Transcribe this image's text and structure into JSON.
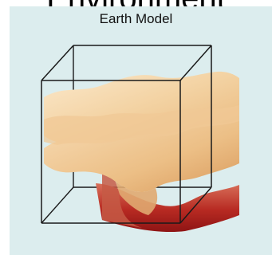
{
  "header": {
    "text": "Environment"
  },
  "figure": {
    "title": "Earth Model"
  },
  "colors": {
    "panel_bg": "#dcedee",
    "layer_light": "#f6dcb4",
    "layer_mid": "#eec58f",
    "layer_deep": "#a61b1b",
    "box_line": "#1a1a1a"
  }
}
